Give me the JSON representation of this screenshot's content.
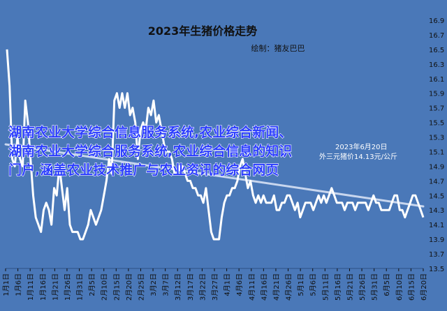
{
  "chart_data": {
    "type": "line",
    "title": "2023年生猪价格走势",
    "subtitle": "绘制：猪友巴巴",
    "xlabel": "",
    "ylabel": "",
    "ylim": [
      13.5,
      16.9
    ],
    "ytick_step": 0.2,
    "x_ticks": [
      "1月1日",
      "1月6日",
      "1月11日",
      "1月16日",
      "1月21日",
      "1月26日",
      "1月31日",
      "2月5日",
      "2月10日",
      "2月15日",
      "2月20日",
      "2月25日",
      "3月2日",
      "3月7日",
      "3月12日",
      "3月17日",
      "3月22日",
      "3月27日",
      "4月1日",
      "4月6日",
      "4月11日",
      "4月16日",
      "4月21日",
      "4月26日",
      "5月1日",
      "5月6日",
      "5月11日",
      "5月16日",
      "5月21日",
      "5月26日",
      "5月31日",
      "6月5日",
      "6月10日",
      "6月15日",
      "6月20日"
    ],
    "series": [
      {
        "values": [
          16.5,
          16.0,
          15.0,
          14.9,
          15.3,
          15.0,
          14.9,
          15.8,
          15.5,
          15.0,
          14.5,
          14.2,
          14.1,
          14.0,
          14.3,
          14.4,
          14.3,
          14.1,
          14.6,
          14.5,
          14.9,
          14.6,
          14.3,
          14.6,
          14.1,
          14.0,
          14.0,
          14.0,
          13.9,
          13.9,
          14.0,
          14.1,
          14.3,
          14.2,
          14.1,
          14.2,
          14.3,
          14.5,
          14.7,
          15.0,
          14.8,
          15.8,
          15.9,
          15.7,
          15.9,
          15.7,
          15.9,
          15.6,
          15.7,
          15.5,
          15.0,
          15.4,
          15.5,
          15.4,
          15.7,
          15.6,
          15.8,
          15.5,
          15.6,
          15.4,
          15.2,
          15.1,
          15.1,
          15.0,
          14.8,
          14.8,
          14.9,
          14.9,
          14.8,
          14.7,
          14.7,
          14.6,
          14.6,
          14.5,
          14.5,
          14.4,
          14.6,
          14.3,
          14.0,
          13.9,
          13.9,
          13.9,
          14.2,
          14.4,
          14.5,
          14.5,
          14.6,
          14.6,
          14.7,
          14.9,
          15.0,
          14.8,
          14.6,
          14.7,
          14.5,
          14.4,
          14.5,
          14.4,
          14.5,
          14.4,
          14.4,
          14.4,
          14.5,
          14.3,
          14.3,
          14.4,
          14.4,
          14.5,
          14.5,
          14.4,
          14.3,
          14.4,
          14.2,
          14.3,
          14.4,
          14.4,
          14.4,
          14.3,
          14.4,
          14.5,
          14.4,
          14.5,
          14.4,
          14.5,
          14.6,
          14.5,
          14.4,
          14.4,
          14.4,
          14.3,
          14.4,
          14.4,
          14.4,
          14.3,
          14.4,
          14.4,
          14.4,
          14.4,
          14.3,
          14.4,
          14.5,
          14.4,
          14.4,
          14.3,
          14.3,
          14.3,
          14.3,
          14.4,
          14.5,
          14.5,
          14.3,
          14.3,
          14.2,
          14.3,
          14.4,
          14.5,
          14.5,
          14.4,
          14.3,
          14.2
        ]
      },
      {
        "values": [
          15.2,
          14.35
        ]
      }
    ],
    "overlay_text": "湖南农业大学综合信息服务系统,农业综合新闻、湖南农业大学综合服务系统,农业综合信息的知识门户,涵盖农业技术推广与农业资讯的综合网页",
    "annotation_date": "2023年6月20日",
    "annotation_price": "外三元猪价14.13元/公斤",
    "grid": false,
    "legend": "none"
  }
}
